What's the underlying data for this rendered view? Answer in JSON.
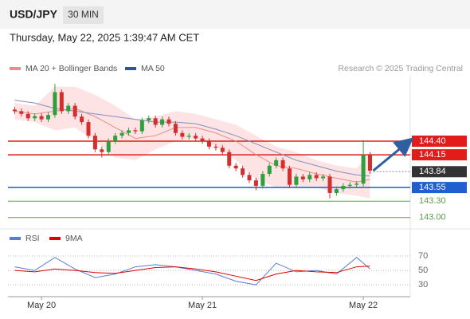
{
  "header": {
    "symbol": "USD/JPY",
    "interval": "30 MIN",
    "timestamp": "Thursday, May 22, 2025 1:39:47 AM CET"
  },
  "chart_data": [
    {
      "type": "candlestick",
      "credit": "Research © 2025 Trading Central",
      "up_color": "#2e9e3e",
      "down_color": "#d32f2f",
      "x": [
        -4,
        -3,
        -2,
        -1,
        0,
        1,
        2,
        3,
        4,
        5,
        6,
        7,
        8,
        9,
        10,
        11,
        12,
        13,
        14,
        15,
        16,
        17,
        18,
        19,
        20,
        21,
        22,
        23,
        24,
        25,
        26,
        27,
        28,
        29,
        30,
        31,
        32,
        33,
        34,
        35,
        36,
        37,
        38,
        39,
        40,
        41,
        42,
        43,
        44,
        45,
        46,
        47,
        48,
        49
      ],
      "open": [
        144.98,
        144.95,
        144.9,
        144.82,
        144.86,
        144.8,
        144.88,
        145.3,
        144.95,
        145.05,
        144.85,
        144.75,
        144.5,
        144.25,
        144.2,
        144.4,
        144.5,
        144.55,
        144.6,
        144.58,
        144.78,
        144.82,
        144.7,
        144.8,
        144.72,
        144.55,
        144.48,
        144.5,
        144.45,
        144.4,
        144.3,
        144.28,
        144.2,
        143.95,
        143.9,
        143.78,
        143.68,
        143.58,
        143.8,
        143.95,
        144.05,
        143.9,
        143.6,
        143.75,
        143.7,
        143.78,
        143.72,
        143.75,
        143.45,
        143.52,
        143.58,
        143.6,
        143.62,
        144.15
      ],
      "high": [
        145.03,
        145.0,
        144.95,
        144.91,
        144.91,
        144.93,
        145.45,
        145.35,
        145.1,
        145.1,
        144.9,
        144.8,
        144.55,
        144.3,
        144.45,
        144.55,
        144.6,
        144.65,
        144.65,
        144.83,
        144.87,
        144.87,
        144.85,
        144.85,
        144.77,
        144.6,
        144.55,
        144.55,
        144.5,
        144.45,
        144.35,
        144.33,
        144.25,
        144.0,
        143.95,
        143.83,
        143.73,
        143.85,
        144.0,
        144.1,
        144.1,
        143.95,
        143.8,
        143.8,
        143.83,
        143.83,
        143.8,
        143.8,
        143.57,
        143.63,
        143.65,
        143.67,
        144.42,
        144.2
      ],
      "low": [
        144.9,
        144.85,
        144.77,
        144.77,
        144.75,
        144.75,
        144.83,
        144.9,
        144.9,
        144.8,
        144.7,
        144.45,
        144.2,
        144.1,
        144.15,
        144.35,
        144.45,
        144.5,
        144.53,
        144.53,
        144.73,
        144.65,
        144.65,
        144.67,
        144.5,
        144.43,
        144.43,
        144.4,
        144.35,
        144.25,
        144.23,
        144.15,
        143.9,
        143.85,
        143.73,
        143.63,
        143.5,
        143.53,
        143.75,
        143.9,
        143.85,
        143.55,
        143.55,
        143.65,
        143.65,
        143.67,
        143.67,
        143.35,
        143.4,
        143.47,
        143.53,
        143.55,
        143.57,
        143.8
      ],
      "close": [
        144.95,
        144.9,
        144.82,
        144.86,
        144.8,
        144.88,
        145.3,
        144.95,
        145.05,
        144.85,
        144.75,
        144.5,
        144.25,
        144.2,
        144.4,
        144.5,
        144.55,
        144.6,
        144.58,
        144.78,
        144.82,
        144.7,
        144.8,
        144.72,
        144.55,
        144.48,
        144.5,
        144.45,
        144.4,
        144.3,
        144.28,
        144.2,
        143.95,
        143.9,
        143.78,
        143.68,
        143.58,
        143.8,
        143.95,
        144.05,
        143.9,
        143.6,
        143.75,
        143.7,
        143.78,
        143.72,
        143.75,
        143.45,
        143.52,
        143.58,
        143.6,
        143.62,
        144.15,
        143.86
      ],
      "overlay_x": [
        -4,
        -1,
        2,
        5,
        8,
        11,
        14,
        17,
        20,
        23,
        26,
        29,
        32,
        35,
        38,
        41,
        44,
        47,
        49
      ],
      "overlays": [
        {
          "name": "MA 20 + Bollinger Bands",
          "color": "#f08a8a",
          "band_color": "#fde3e3",
          "values": [
            144.95,
            144.9,
            144.95,
            145.0,
            144.85,
            144.65,
            144.45,
            144.5,
            144.65,
            144.65,
            144.55,
            144.4,
            144.15,
            143.95,
            143.9,
            143.8,
            143.72,
            143.65,
            143.7
          ],
          "upper": [
            145.1,
            145.05,
            145.4,
            145.4,
            145.25,
            145.05,
            144.8,
            144.85,
            144.95,
            144.9,
            144.8,
            144.7,
            144.5,
            144.3,
            144.2,
            144.05,
            143.95,
            143.9,
            144.2
          ],
          "lower": [
            144.8,
            144.75,
            144.6,
            144.65,
            144.4,
            144.1,
            144.05,
            144.25,
            144.4,
            144.45,
            144.3,
            144.05,
            143.7,
            143.55,
            143.55,
            143.55,
            143.45,
            143.4,
            143.35
          ]
        },
        {
          "name": "MA 50",
          "color": "#7f8fc0",
          "legend_color": "#2f5597",
          "values": [
            145.15,
            145.1,
            145.0,
            144.95,
            144.9,
            144.85,
            144.8,
            144.75,
            144.75,
            144.72,
            144.62,
            144.5,
            144.35,
            144.2,
            144.05,
            143.95,
            143.85,
            143.78,
            143.76
          ]
        }
      ],
      "levels": [
        {
          "value": 144.4,
          "label": "144.40",
          "color": "#e21b1b",
          "style": "box",
          "line": "solid"
        },
        {
          "value": 144.15,
          "label": "144.15",
          "color": "#e21b1b",
          "style": "box",
          "line": "solid"
        },
        {
          "value": 143.84,
          "label": "143.84",
          "color": "#333333",
          "style": "box",
          "line": "dotted"
        },
        {
          "value": 143.55,
          "label": "143.55",
          "color": "#1f5fd0",
          "style": "box",
          "line": "solid"
        },
        {
          "value": 143.3,
          "label": "143.30",
          "color": "#5e9a4e",
          "style": "text",
          "line": "solid"
        },
        {
          "value": 143.0,
          "label": "143.00",
          "color": "#5e9a4e",
          "style": "text",
          "line": "solid"
        }
      ],
      "xlim": [
        -5,
        55
      ],
      "ylim": [
        142.82,
        145.6
      ],
      "xticks": [
        {
          "value": 0,
          "label": "May 20"
        },
        {
          "value": 24,
          "label": "May 21"
        },
        {
          "value": 48,
          "label": "May 22"
        }
      ]
    },
    {
      "type": "line",
      "x": [
        -4,
        -1,
        2,
        5,
        8,
        11,
        14,
        17,
        20,
        23,
        26,
        29,
        32,
        35,
        38,
        41,
        44,
        47,
        49
      ],
      "series": [
        {
          "name": "RSI",
          "color": "#5b7bd5",
          "values": [
            55,
            50,
            68,
            52,
            40,
            45,
            55,
            58,
            55,
            50,
            45,
            35,
            30,
            60,
            48,
            50,
            45,
            68,
            52
          ]
        },
        {
          "name": "9MA",
          "color": "#e00000",
          "values": [
            50,
            48,
            52,
            50,
            47,
            46,
            50,
            54,
            55,
            52,
            48,
            42,
            36,
            45,
            50,
            48,
            47,
            55,
            56
          ]
        }
      ],
      "xlim": [
        -5,
        55
      ],
      "ylim": [
        18,
        80
      ],
      "yticks": [
        30,
        50,
        70
      ],
      "grid": true
    }
  ]
}
